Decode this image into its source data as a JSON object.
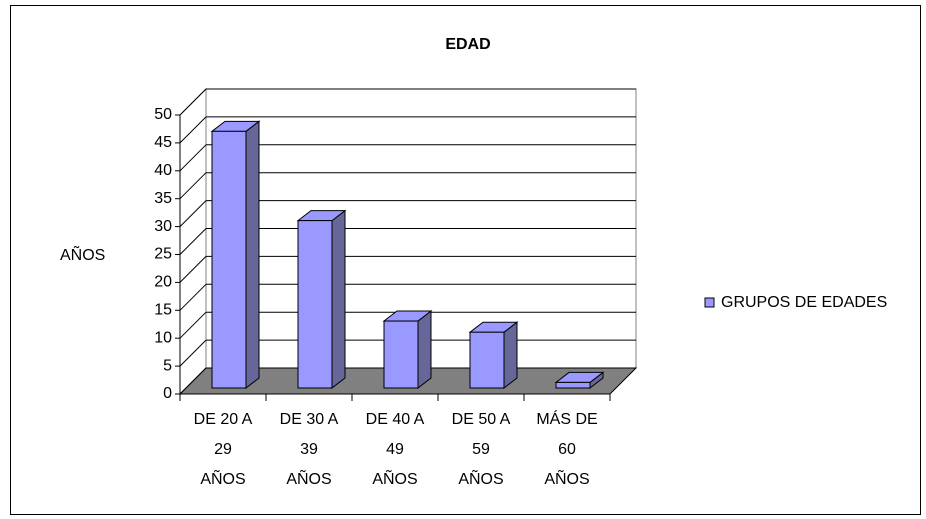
{
  "chart_data": {
    "type": "bar",
    "title": "EDAD",
    "y_label": "AÑOS",
    "categories": [
      [
        "DE 20 A",
        "29",
        "AÑOS"
      ],
      [
        "DE 30 A",
        "39",
        "AÑOS"
      ],
      [
        "DE 40 A",
        "49",
        "AÑOS"
      ],
      [
        "DE 50 A",
        "59",
        "AÑOS"
      ],
      [
        "MÁS DE",
        "60",
        "AÑOS"
      ]
    ],
    "series": [
      {
        "name": "GRUPOS DE EDADES",
        "color": "#9999ff",
        "values": [
          46,
          30,
          12,
          10,
          1
        ]
      }
    ],
    "ylim": [
      0,
      50
    ],
    "yticks": [
      0,
      5,
      10,
      15,
      20,
      25,
      30,
      35,
      40,
      45,
      50
    ],
    "grid": true,
    "legend": "right"
  }
}
